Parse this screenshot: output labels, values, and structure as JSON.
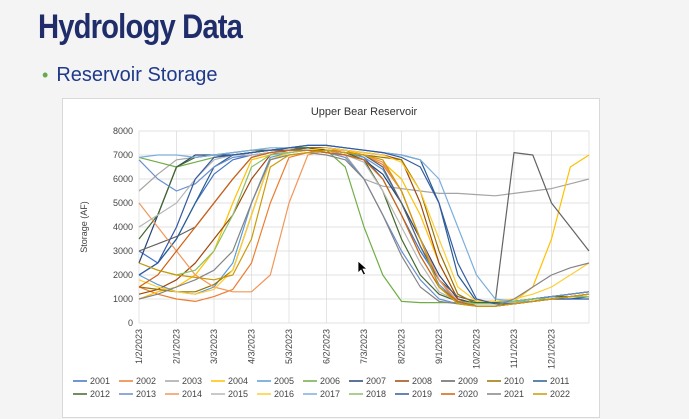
{
  "slide": {
    "title": "Hydrology Data",
    "bullet": "Reservoir Storage"
  },
  "chart_data": {
    "type": "line",
    "title": "Upper Bear Reservoir",
    "xlabel": "",
    "ylabel": "Storage (AF)",
    "ylim": [
      0,
      8000
    ],
    "yticks": [
      0,
      1000,
      2000,
      3000,
      4000,
      5000,
      6000,
      7000,
      8000
    ],
    "xticks": [
      "1/2/2023",
      "2/1/2023",
      "3/3/2023",
      "4/3/2023",
      "5/3/2023",
      "6/2/2023",
      "7/3/2023",
      "8/2/2023",
      "9/1/2023",
      "10/2/2023",
      "11/1/2023",
      "12/1/2023"
    ],
    "x": [
      "1/2/2023",
      "1/17/2023",
      "2/1/2023",
      "2/16/2023",
      "3/3/2023",
      "3/18/2023",
      "4/3/2023",
      "4/18/2023",
      "5/3/2023",
      "5/18/2023",
      "6/2/2023",
      "6/17/2023",
      "7/3/2023",
      "7/18/2023",
      "8/2/2023",
      "8/17/2023",
      "9/1/2023",
      "9/16/2023",
      "10/2/2023",
      "10/17/2023",
      "11/1/2023",
      "11/16/2023",
      "12/1/2023",
      "12/16/2023",
      "12/31/2023"
    ],
    "grid": true,
    "legend_position": "bottom",
    "series": [
      {
        "name": "2001",
        "color": "#4472c4",
        "values": [
          3000,
          2500,
          3500,
          5000,
          6200,
          6800,
          7000,
          7100,
          7200,
          7300,
          7300,
          7200,
          6900,
          6000,
          4500,
          3000,
          1800,
          900,
          800,
          800,
          850,
          900,
          1000,
          1100,
          1200
        ]
      },
      {
        "name": "2002",
        "color": "#ed7d31",
        "values": [
          1500,
          1200,
          1000,
          900,
          1100,
          1400,
          2500,
          5000,
          6900,
          7100,
          7200,
          7200,
          7000,
          6600,
          5500,
          3500,
          1800,
          800,
          700,
          700,
          800,
          900,
          1000,
          1100,
          1200
        ]
      },
      {
        "name": "2003",
        "color": "#a5a5a5",
        "values": [
          5500,
          6200,
          6800,
          6900,
          7000,
          7000,
          7100,
          7200,
          7300,
          7300,
          7200,
          7000,
          6000,
          5700,
          5600,
          5500,
          5400,
          5400,
          5350,
          5300,
          5400,
          5500,
          5600,
          5800,
          6000
        ]
      },
      {
        "name": "2004",
        "color": "#ffc000",
        "values": [
          1000,
          1300,
          1500,
          2000,
          3000,
          5000,
          6800,
          7000,
          7200,
          7300,
          7300,
          7200,
          7000,
          6700,
          6000,
          4500,
          2500,
          1000,
          800,
          800,
          900,
          1500,
          3500,
          6500,
          7000
        ]
      },
      {
        "name": "2005",
        "color": "#5b9bd5",
        "values": [
          2000,
          1600,
          1300,
          1200,
          1500,
          2500,
          5000,
          6900,
          7100,
          7200,
          7200,
          7100,
          6900,
          6400,
          5000,
          3200,
          1600,
          900,
          800,
          800,
          900,
          1000,
          1100,
          1200,
          1300
        ]
      },
      {
        "name": "2006",
        "color": "#70ad47",
        "values": [
          6900,
          6700,
          6500,
          6700,
          6900,
          7000,
          7100,
          7200,
          7300,
          7300,
          7200,
          6500,
          4000,
          2000,
          900,
          850,
          850,
          850,
          850,
          850,
          900,
          1000,
          1100,
          1200,
          1300
        ]
      },
      {
        "name": "2007",
        "color": "#264478",
        "values": [
          2500,
          4500,
          6500,
          7000,
          7000,
          7000,
          7100,
          7200,
          7200,
          7200,
          7100,
          7000,
          6800,
          6200,
          5000,
          3500,
          2000,
          1000,
          800,
          800,
          900,
          1000,
          1100,
          1200,
          1300
        ]
      },
      {
        "name": "2008",
        "color": "#9e480e",
        "values": [
          1200,
          1400,
          1800,
          2500,
          3500,
          4500,
          6000,
          7000,
          7200,
          7300,
          7300,
          7200,
          7100,
          7000,
          6800,
          5000,
          2500,
          1000,
          700,
          700,
          800,
          900,
          1000,
          1100,
          1200
        ]
      },
      {
        "name": "2009",
        "color": "#636363",
        "values": [
          3000,
          3300,
          3600,
          4000,
          5000,
          6000,
          6900,
          7100,
          7200,
          7300,
          7200,
          7100,
          7000,
          6500,
          5000,
          3200,
          1800,
          1100,
          900,
          900,
          7100,
          7000,
          5000,
          4000,
          3000
        ]
      },
      {
        "name": "2010",
        "color": "#997300",
        "values": [
          1500,
          1400,
          1300,
          1300,
          1600,
          2200,
          4500,
          6800,
          7100,
          7200,
          7200,
          7100,
          7000,
          6900,
          6800,
          5500,
          3000,
          1200,
          800,
          800,
          900,
          1000,
          1100,
          1200,
          1300
        ]
      },
      {
        "name": "2011",
        "color": "#255e91",
        "values": [
          2000,
          2500,
          3500,
          5000,
          6500,
          7000,
          7100,
          7200,
          7300,
          7400,
          7400,
          7300,
          7200,
          7100,
          7000,
          6800,
          5000,
          2000,
          900,
          800,
          800,
          900,
          1000,
          1000,
          1100
        ]
      },
      {
        "name": "2012",
        "color": "#43682b",
        "values": [
          3500,
          4500,
          6500,
          6900,
          7000,
          7100,
          7200,
          7200,
          7300,
          7300,
          7200,
          7100,
          6800,
          5500,
          3500,
          2000,
          1200,
          900,
          850,
          850,
          900,
          1000,
          1100,
          1100,
          1200
        ]
      },
      {
        "name": "2013",
        "color": "#698ed0",
        "values": [
          6800,
          6000,
          5500,
          5800,
          6500,
          6900,
          7000,
          7100,
          7200,
          7200,
          7100,
          6900,
          6000,
          4500,
          3000,
          1800,
          1000,
          800,
          800,
          800,
          900,
          1000,
          1100,
          1200,
          1300
        ]
      },
      {
        "name": "2014",
        "color": "#f1975a",
        "values": [
          5000,
          4000,
          3000,
          2000,
          1500,
          1300,
          1300,
          2000,
          5000,
          7000,
          7200,
          7100,
          7000,
          6700,
          5500,
          3500,
          1800,
          900,
          700,
          700,
          800,
          900,
          1000,
          1100,
          1200
        ]
      },
      {
        "name": "2015",
        "color": "#b7b7b7",
        "values": [
          4000,
          4500,
          5000,
          6000,
          6800,
          7000,
          7000,
          7100,
          7100,
          7200,
          7100,
          7000,
          6700,
          5500,
          4000,
          2500,
          1300,
          900,
          800,
          800,
          850,
          900,
          1000,
          1100,
          1100
        ]
      },
      {
        "name": "2016",
        "color": "#ffcd33",
        "values": [
          1800,
          1500,
          1300,
          1200,
          1400,
          2200,
          4500,
          6800,
          7100,
          7200,
          7300,
          7200,
          7100,
          7000,
          6700,
          5500,
          3500,
          1500,
          900,
          900,
          1000,
          1200,
          1500,
          2000,
          2500
        ]
      },
      {
        "name": "2017",
        "color": "#7cafdd",
        "values": [
          6900,
          7000,
          7000,
          6900,
          7000,
          7100,
          7200,
          7300,
          7300,
          7400,
          7400,
          7300,
          7200,
          7100,
          7000,
          6800,
          6000,
          4000,
          2000,
          1000,
          900,
          900,
          1000,
          1100,
          1200
        ]
      },
      {
        "name": "2018",
        "color": "#8cc168",
        "values": [
          2500,
          2200,
          2000,
          2200,
          3000,
          4500,
          6500,
          7000,
          7100,
          7200,
          7100,
          7000,
          6800,
          6000,
          4500,
          2800,
          1500,
          900,
          800,
          800,
          900,
          1000,
          1000,
          1100,
          1100
        ]
      },
      {
        "name": "2019",
        "color": "#335aa1",
        "values": [
          2000,
          2500,
          4000,
          6000,
          6900,
          7000,
          7100,
          7200,
          7300,
          7400,
          7400,
          7300,
          7200,
          7100,
          6900,
          6500,
          5000,
          2500,
          1000,
          800,
          800,
          900,
          1000,
          1000,
          1000
        ]
      },
      {
        "name": "2020",
        "color": "#d26012",
        "values": [
          1500,
          2000,
          3000,
          4000,
          5000,
          6000,
          6900,
          7100,
          7200,
          7200,
          7100,
          7000,
          6800,
          6000,
          4500,
          2800,
          1500,
          900,
          700,
          700,
          800,
          900,
          1000,
          1100,
          1200
        ]
      },
      {
        "name": "2021",
        "color": "#848484",
        "values": [
          1000,
          1200,
          1500,
          1800,
          2200,
          3000,
          5000,
          6800,
          7000,
          7100,
          7000,
          6800,
          6000,
          4500,
          2800,
          1500,
          900,
          800,
          700,
          700,
          1000,
          1500,
          2000,
          2300,
          2500
        ]
      },
      {
        "name": "2022",
        "color": "#cc9a06",
        "values": [
          2500,
          2200,
          2000,
          1900,
          1800,
          2000,
          3500,
          6500,
          7000,
          7100,
          7200,
          7100,
          7000,
          6800,
          5500,
          3500,
          1500,
          800,
          700,
          700,
          800,
          900,
          1000,
          1100,
          1200
        ]
      }
    ]
  }
}
